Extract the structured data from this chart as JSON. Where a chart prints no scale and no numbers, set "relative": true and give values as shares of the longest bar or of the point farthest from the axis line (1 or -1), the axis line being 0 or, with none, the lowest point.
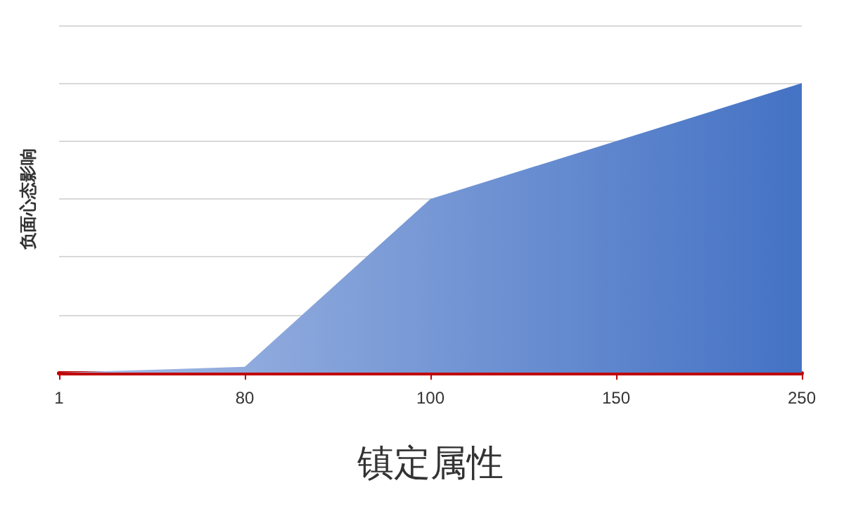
{
  "chart_data": {
    "type": "area",
    "relative": true,
    "xlabel": "镇定属性",
    "ylabel": "负面心态影响",
    "categories": [
      "1",
      "80",
      "100",
      "150",
      "250"
    ],
    "series": [
      {
        "color": "#4472c4",
        "values": [
          0,
          0.02,
          0.6,
          0.8,
          1
        ]
      }
    ],
    "grid": "y"
  }
}
